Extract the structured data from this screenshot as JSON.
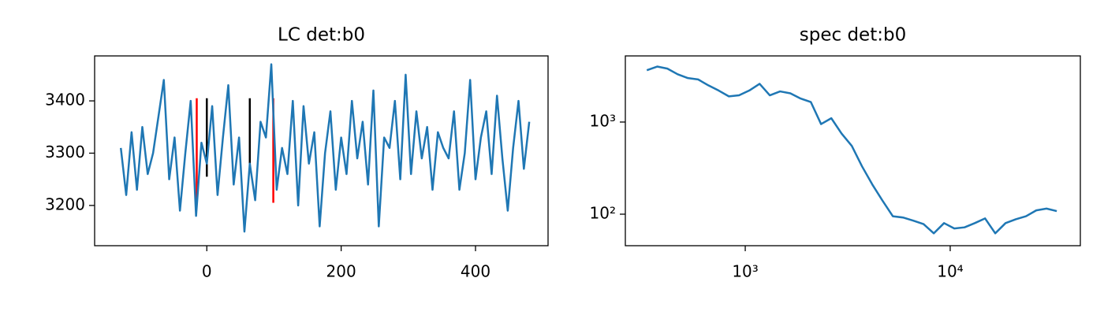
{
  "chart_data": [
    {
      "type": "line",
      "title": "LC det:b0",
      "color": "#1f77b4",
      "x": [
        -128,
        -120,
        -112,
        -104,
        -96,
        -88,
        -80,
        -72,
        -64,
        -56,
        -48,
        -40,
        -32,
        -24,
        -16,
        -8,
        0,
        8,
        16,
        24,
        32,
        40,
        48,
        56,
        64,
        72,
        80,
        88,
        96,
        104,
        112,
        120,
        128,
        136,
        144,
        152,
        160,
        168,
        176,
        184,
        192,
        200,
        208,
        216,
        224,
        232,
        240,
        248,
        256,
        264,
        272,
        280,
        288,
        296,
        304,
        312,
        320,
        328,
        336,
        344,
        352,
        360,
        368,
        376,
        384,
        392,
        400,
        408,
        416,
        424,
        432,
        440,
        448,
        456,
        464,
        472,
        480
      ],
      "values": [
        3310,
        3220,
        3340,
        3230,
        3350,
        3260,
        3300,
        3370,
        3440,
        3250,
        3330,
        3190,
        3300,
        3400,
        3180,
        3320,
        3280,
        3390,
        3220,
        3330,
        3430,
        3240,
        3330,
        3150,
        3280,
        3210,
        3360,
        3330,
        3470,
        3230,
        3310,
        3260,
        3400,
        3200,
        3390,
        3280,
        3340,
        3160,
        3300,
        3380,
        3230,
        3330,
        3260,
        3400,
        3290,
        3360,
        3240,
        3420,
        3160,
        3330,
        3310,
        3400,
        3250,
        3450,
        3260,
        3380,
        3290,
        3350,
        3230,
        3340,
        3310,
        3290,
        3380,
        3230,
        3300,
        3440,
        3250,
        3330,
        3380,
        3260,
        3410,
        3290,
        3190,
        3310,
        3400,
        3270,
        3360
      ],
      "vlines": [
        {
          "x": -15,
          "ymin": 3205,
          "ymax": 3405,
          "color": "#ff0000"
        },
        {
          "x": 0,
          "ymin": 3255,
          "ymax": 3405,
          "color": "#000000"
        },
        {
          "x": 64,
          "ymin": 3275,
          "ymax": 3405,
          "color": "#000000"
        },
        {
          "x": 99,
          "ymin": 3205,
          "ymax": 3405,
          "color": "#ff0000"
        }
      ],
      "xlim": [
        -167,
        508
      ],
      "ylim": [
        3123,
        3486
      ],
      "xticks": [
        0,
        200,
        400
      ],
      "yticks": [
        3200,
        3300,
        3400
      ],
      "xscale": "linear",
      "yscale": "linear"
    },
    {
      "type": "line",
      "title": "spec det:b0",
      "color": "#1f77b4",
      "x": [
        331,
        372,
        417,
        468,
        525,
        589,
        661,
        741,
        832,
        933,
        1047,
        1175,
        1318,
        1479,
        1660,
        1862,
        2089,
        2344,
        2630,
        2951,
        3311,
        3715,
        4169,
        4677,
        5248,
        5888,
        6607,
        7413,
        8318,
        9333,
        10471,
        11749,
        13183,
        14791,
        16596,
        18621,
        20893,
        23442,
        26303,
        29512,
        33113
      ],
      "values": [
        3650,
        4000,
        3800,
        3300,
        3000,
        2900,
        2500,
        2200,
        1900,
        1950,
        2200,
        2600,
        1950,
        2150,
        2050,
        1800,
        1650,
        950,
        1100,
        750,
        550,
        330,
        210,
        140,
        95,
        92,
        85,
        78,
        62,
        80,
        70,
        72,
        80,
        90,
        62,
        80,
        88,
        95,
        110,
        115,
        108
      ],
      "xlim": [
        260,
        43150
      ],
      "ylim": [
        45.5,
        5220
      ],
      "xticks": [
        {
          "value": 1000,
          "label": "10³"
        },
        {
          "value": 10000,
          "label": "10⁴"
        }
      ],
      "yticks": [
        {
          "value": 100,
          "label": "10²"
        },
        {
          "value": 1000,
          "label": "10³"
        }
      ],
      "xscale": "log",
      "yscale": "log"
    }
  ]
}
